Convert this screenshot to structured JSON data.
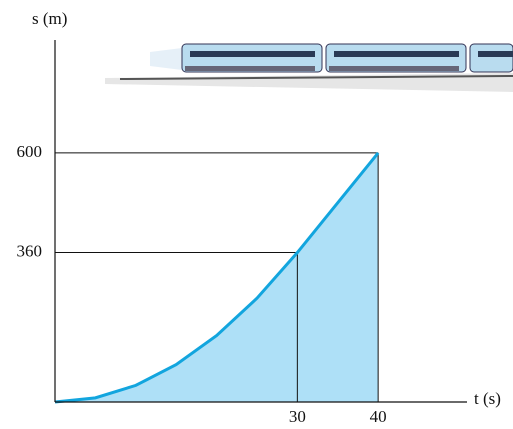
{
  "chart_data": {
    "type": "line",
    "x_label": "t (s)",
    "y_label": "s (m)",
    "x": [
      0,
      5,
      10,
      15,
      20,
      25,
      30,
      40
    ],
    "values": [
      0,
      10,
      40,
      90,
      160,
      250,
      360,
      600
    ],
    "color": "#12a5de",
    "fill": "#aee0f7",
    "xlim": [
      0,
      51
    ],
    "ylim": [
      0,
      872
    ],
    "xticks": [
      30,
      40
    ],
    "yticks": [
      360,
      600
    ]
  }
}
